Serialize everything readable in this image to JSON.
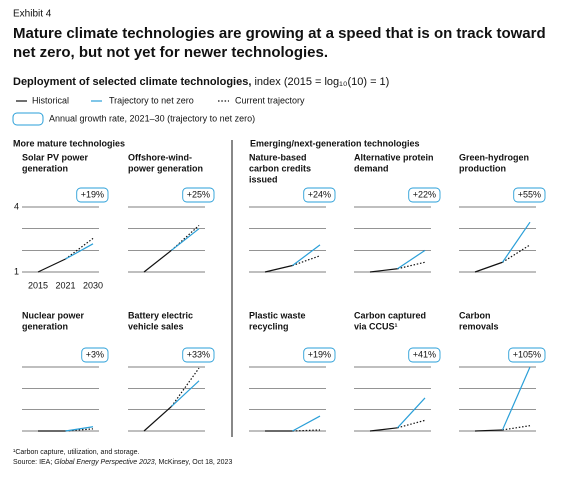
{
  "exhibit": "Exhibit 4",
  "title": [
    "Mature climate technologies are growing at a speed that is on track toward",
    "net zero, but not yet for newer technologies."
  ],
  "subtitle_bold": "Deployment of selected climate technologies,",
  "subtitle_rest": "index (2015 = log₁₀(10) = 1)",
  "growth_legend": "Annual growth rate, 2021–30 (trajectory to net zero)",
  "groups": [
    "More mature technologies",
    "Emerging/next-generation technologies"
  ],
  "footnote": "¹Carbon capture, utilization, and storage.",
  "source": [
    "Source: IEA; ",
    "Global Energy Perspective 2023",
    ", McKinsey, Oct 18, 2023"
  ],
  "chart_data": [
    {
      "type": "line",
      "title": [
        "Solar PV power",
        "generation"
      ],
      "annotation": "+19%",
      "categories": [
        "2015",
        "2021",
        "2030"
      ],
      "ylim": [
        1,
        4
      ],
      "yticks": [
        1,
        4
      ],
      "gridlines": [
        1,
        2,
        3,
        4
      ],
      "series": [
        {
          "name": "Historical",
          "color": "#111111",
          "style": "solid",
          "values": [
            1,
            1.6,
            null
          ]
        },
        {
          "name": "Trajectory to net zero",
          "color": "#2a9fd8",
          "style": "solid",
          "values": [
            null,
            1.6,
            2.3
          ]
        },
        {
          "name": "Current trajectory",
          "color": "#111111",
          "style": "dotted",
          "values": [
            null,
            1.6,
            2.55
          ]
        }
      ]
    },
    {
      "type": "line",
      "title": [
        "Offshore-wind-",
        "power generation"
      ],
      "annotation": "+25%",
      "categories": [
        null,
        null,
        null
      ],
      "ylim": [
        1,
        4
      ],
      "gridlines": [
        1,
        2,
        3,
        4
      ],
      "series": [
        {
          "name": "Historical",
          "color": "#111111",
          "style": "solid",
          "values": [
            1,
            2.0,
            null
          ]
        },
        {
          "name": "Trajectory to net zero",
          "color": "#2a9fd8",
          "style": "solid",
          "values": [
            null,
            2.0,
            3.0
          ]
        },
        {
          "name": "Current trajectory",
          "color": "#111111",
          "style": "dotted",
          "values": [
            null,
            2.0,
            3.15
          ]
        }
      ]
    },
    {
      "type": "line",
      "title": [
        "Nature-based",
        "carbon credits",
        "issued"
      ],
      "annotation": "+24%",
      "categories": [
        null,
        null,
        null
      ],
      "ylim": [
        1,
        4
      ],
      "gridlines": [
        1,
        2,
        3,
        4
      ],
      "series": [
        {
          "name": "Historical",
          "color": "#111111",
          "style": "solid",
          "values": [
            1,
            1.3,
            null
          ]
        },
        {
          "name": "Trajectory to net zero",
          "color": "#2a9fd8",
          "style": "solid",
          "values": [
            null,
            1.3,
            2.25
          ]
        },
        {
          "name": "Current trajectory",
          "color": "#111111",
          "style": "dotted",
          "values": [
            null,
            1.3,
            1.75
          ]
        }
      ]
    },
    {
      "type": "line",
      "title": [
        "Alternative protein",
        "demand"
      ],
      "annotation": "+22%",
      "categories": [
        null,
        null,
        null
      ],
      "ylim": [
        1,
        4
      ],
      "gridlines": [
        1,
        2,
        3,
        4
      ],
      "series": [
        {
          "name": "Historical",
          "color": "#111111",
          "style": "solid",
          "values": [
            1,
            1.15,
            null
          ]
        },
        {
          "name": "Trajectory to net zero",
          "color": "#2a9fd8",
          "style": "solid",
          "values": [
            null,
            1.15,
            2.0
          ]
        },
        {
          "name": "Current trajectory",
          "color": "#111111",
          "style": "dotted",
          "values": [
            null,
            1.15,
            1.45
          ]
        }
      ]
    },
    {
      "type": "line",
      "title": [
        "Green-hydrogen",
        "production"
      ],
      "annotation": "+55%",
      "categories": [
        null,
        null,
        null
      ],
      "ylim": [
        1,
        4
      ],
      "gridlines": [
        1,
        2,
        3,
        4
      ],
      "series": [
        {
          "name": "Historical",
          "color": "#111111",
          "style": "solid",
          "values": [
            1,
            1.45,
            null
          ]
        },
        {
          "name": "Trajectory to net zero",
          "color": "#2a9fd8",
          "style": "solid",
          "values": [
            null,
            1.45,
            3.3
          ]
        },
        {
          "name": "Current trajectory",
          "color": "#111111",
          "style": "dotted",
          "values": [
            null,
            1.45,
            2.25
          ]
        }
      ]
    },
    {
      "type": "line",
      "title": [
        "Nuclear power",
        "generation"
      ],
      "annotation": "+3%",
      "categories": [
        null,
        null,
        null
      ],
      "ylim": [
        1,
        4
      ],
      "gridlines": [
        1,
        2,
        3,
        4
      ],
      "series": [
        {
          "name": "Historical",
          "color": "#111111",
          "style": "solid",
          "values": [
            1,
            1.0,
            null
          ]
        },
        {
          "name": "Trajectory to net zero",
          "color": "#2a9fd8",
          "style": "solid",
          "values": [
            null,
            1.0,
            1.2
          ]
        },
        {
          "name": "Current trajectory",
          "color": "#111111",
          "style": "dotted",
          "values": [
            null,
            1.0,
            1.1
          ]
        }
      ]
    },
    {
      "type": "line",
      "title": [
        "Battery electric",
        "vehicle sales"
      ],
      "annotation": "+33%",
      "categories": [
        null,
        null,
        null
      ],
      "ylim": [
        1,
        4
      ],
      "gridlines": [
        1,
        2,
        3,
        4
      ],
      "series": [
        {
          "name": "Historical",
          "color": "#111111",
          "style": "solid",
          "values": [
            1,
            2.15,
            null
          ]
        },
        {
          "name": "Trajectory to net zero",
          "color": "#2a9fd8",
          "style": "solid",
          "values": [
            null,
            2.15,
            3.35
          ]
        },
        {
          "name": "Current trajectory",
          "color": "#111111",
          "style": "dotted",
          "values": [
            null,
            2.15,
            3.95
          ]
        }
      ]
    },
    {
      "type": "line",
      "title": [
        "Plastic waste",
        "recycling"
      ],
      "annotation": "+19%",
      "categories": [
        null,
        null,
        null
      ],
      "ylim": [
        1,
        4
      ],
      "gridlines": [
        1,
        2,
        3,
        4
      ],
      "series": [
        {
          "name": "Historical",
          "color": "#111111",
          "style": "solid",
          "values": [
            1,
            1.0,
            null
          ]
        },
        {
          "name": "Trajectory to net zero",
          "color": "#2a9fd8",
          "style": "solid",
          "values": [
            null,
            1.0,
            1.7
          ]
        },
        {
          "name": "Current trajectory",
          "color": "#111111",
          "style": "dotted",
          "values": [
            null,
            1.0,
            1.05
          ]
        }
      ]
    },
    {
      "type": "line",
      "title": [
        "Carbon captured",
        "via CCUS¹"
      ],
      "annotation": "+41%",
      "categories": [
        null,
        null,
        null
      ],
      "ylim": [
        1,
        4
      ],
      "gridlines": [
        1,
        2,
        3,
        4
      ],
      "series": [
        {
          "name": "Historical",
          "color": "#111111",
          "style": "solid",
          "values": [
            1,
            1.15,
            null
          ]
        },
        {
          "name": "Trajectory to net zero",
          "color": "#2a9fd8",
          "style": "solid",
          "values": [
            null,
            1.15,
            2.55
          ]
        },
        {
          "name": "Current trajectory",
          "color": "#111111",
          "style": "dotted",
          "values": [
            null,
            1.15,
            1.5
          ]
        }
      ]
    },
    {
      "type": "line",
      "title": [
        "Carbon",
        "removals"
      ],
      "annotation": "+105%",
      "categories": [
        null,
        null,
        null
      ],
      "ylim": [
        1,
        4
      ],
      "gridlines": [
        1,
        2,
        3,
        4
      ],
      "series": [
        {
          "name": "Historical",
          "color": "#111111",
          "style": "solid",
          "values": [
            1,
            1.05,
            null
          ]
        },
        {
          "name": "Trajectory to net zero",
          "color": "#2a9fd8",
          "style": "solid",
          "values": [
            null,
            1.05,
            4.0
          ]
        },
        {
          "name": "Current trajectory",
          "color": "#111111",
          "style": "dotted",
          "values": [
            null,
            1.05,
            1.25
          ]
        }
      ]
    }
  ]
}
